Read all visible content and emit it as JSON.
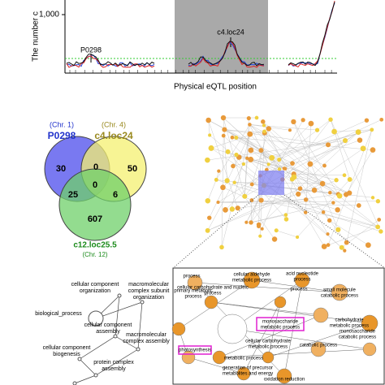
{
  "eqtl_plot": {
    "y_label": "The number c",
    "y_tick": "1,000",
    "x_label": "Physical eQTL position",
    "annotations": [
      "P0298",
      "c4.loc24"
    ]
  },
  "venn": {
    "sets": [
      {
        "chr": "(Chr. 1)",
        "name": "P0298"
      },
      {
        "chr": "(Chr. 4)",
        "name": "c4.loc24"
      },
      {
        "chr": "(Chr. 12)",
        "name": "c12.loc25.5"
      }
    ],
    "regions": [
      30,
      0,
      50,
      25,
      0,
      6,
      607
    ]
  },
  "go_tree": {
    "nodes": [
      {
        "lines": [
          "cellular component",
          "organization"
        ]
      },
      {
        "lines": [
          "macromolecular",
          "complex subunit",
          "organization"
        ]
      },
      {
        "lines": [
          "biological_process"
        ]
      },
      {
        "lines": [
          "cellular component",
          "assembly"
        ]
      },
      {
        "lines": [
          "macromolecular",
          "complex assembly"
        ]
      },
      {
        "lines": [
          "cellular component",
          "biogenesis"
        ]
      },
      {
        "lines": [
          "protein complex",
          "assembly"
        ]
      }
    ]
  },
  "zoom": {
    "labels": [
      {
        "lines": [
          "process"
        ]
      },
      {
        "lines": [
          "cellular aldehyde",
          "metabolic process"
        ]
      },
      {
        "lines": [
          "acid nucleotide",
          "process"
        ]
      },
      {
        "lines": [
          "primary metabolic",
          "process"
        ]
      },
      {
        "lines": [
          "cellular carbohydrate and nucleic",
          "process"
        ]
      },
      {
        "lines": [
          "process"
        ]
      },
      {
        "lines": [
          "monosaccharide",
          "metabolic process"
        ]
      },
      {
        "lines": [
          "small molecule",
          "catabolic process"
        ]
      },
      {
        "lines": [
          "cellular carbohydrate",
          "metabolic process"
        ]
      },
      {
        "lines": [
          "carbohydrate",
          "metabolic process"
        ]
      },
      {
        "lines": [
          "monosaccharide",
          "catabolic process"
        ]
      },
      {
        "lines": [
          "catabolic process"
        ]
      },
      {
        "lines": [
          "metabolic process"
        ]
      },
      {
        "lines": [
          "photosynthesis"
        ]
      },
      {
        "lines": [
          "generation of precursor",
          "metabolites and energy"
        ]
      },
      {
        "lines": [
          "oxidation reduction"
        ]
      }
    ]
  }
}
